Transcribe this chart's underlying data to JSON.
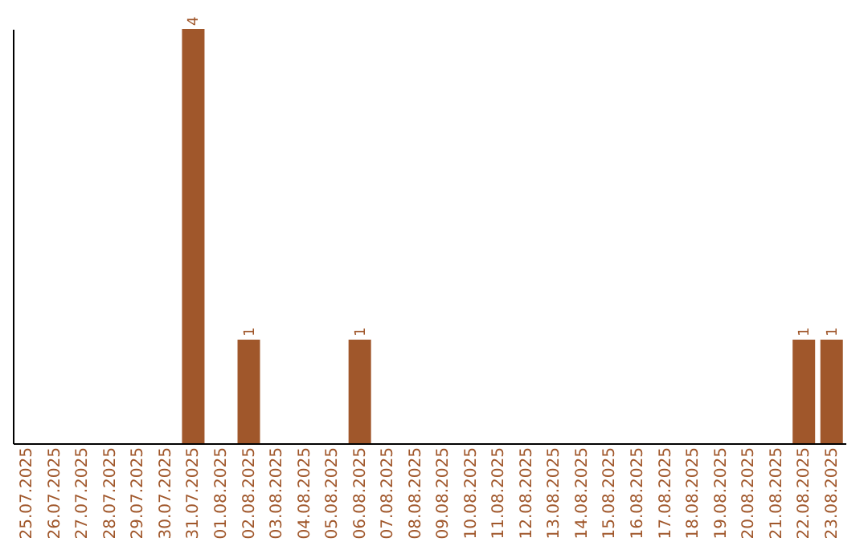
{
  "chart_data": {
    "type": "bar",
    "categories": [
      "25.07.2025",
      "26.07.2025",
      "27.07.2025",
      "28.07.2025",
      "29.07.2025",
      "30.07.2025",
      "31.07.2025",
      "01.08.2025",
      "02.08.2025",
      "03.08.2025",
      "04.08.2025",
      "05.08.2025",
      "06.08.2025",
      "07.08.2025",
      "08.08.2025",
      "09.08.2025",
      "10.08.2025",
      "11.08.2025",
      "12.08.2025",
      "13.08.2025",
      "14.08.2025",
      "15.08.2025",
      "16.08.2025",
      "17.08.2025",
      "18.08.2025",
      "19.08.2025",
      "20.08.2025",
      "21.08.2025",
      "22.08.2025",
      "23.08.2025"
    ],
    "values": [
      0,
      0,
      0,
      0,
      0,
      0,
      4,
      0,
      1,
      0,
      0,
      0,
      1,
      0,
      0,
      0,
      0,
      0,
      0,
      0,
      0,
      0,
      0,
      0,
      0,
      0,
      0,
      0,
      1,
      1
    ],
    "value_labels": [
      null,
      null,
      null,
      null,
      null,
      null,
      "4",
      null,
      "1",
      null,
      null,
      null,
      "1",
      null,
      null,
      null,
      null,
      null,
      null,
      null,
      null,
      null,
      null,
      null,
      null,
      null,
      null,
      null,
      "1",
      "1"
    ],
    "color": "#a0572b",
    "grid": false,
    "tick_labels": "x"
  }
}
